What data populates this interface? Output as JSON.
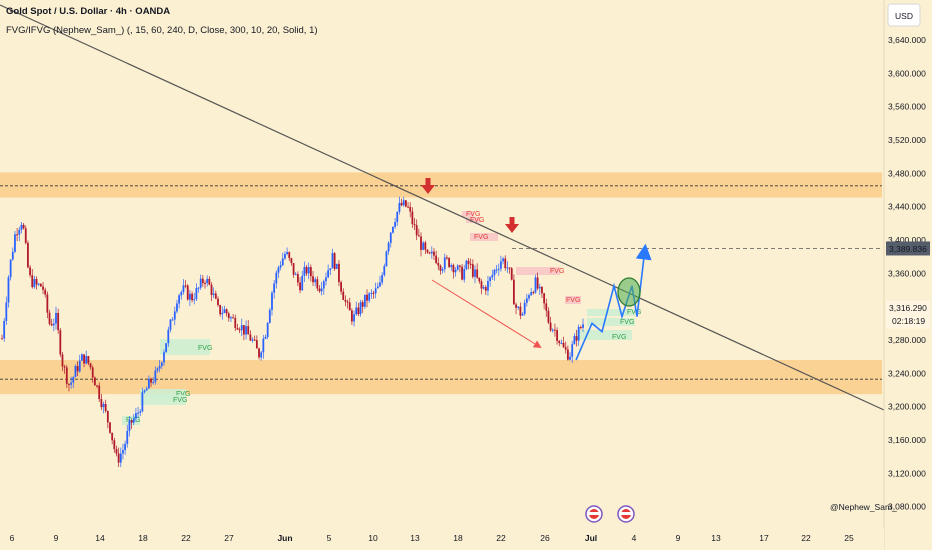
{
  "header": {
    "title": "Gold Spot / U.S. Dollar · 4h · OANDA",
    "indicator": "FVG/IFVG (Nephew_Sam_) (, 15, 60, 240, D, Close, 300, 10, 20, Solid, 1)"
  },
  "currency": "USD",
  "watermark": "@Nephew_Sam_",
  "colors": {
    "background": "#fcf0d2",
    "zone": "#f9cc8a",
    "bull": "#2962ff",
    "bear": "#b2182b",
    "fvg_red": "#f7c6c6",
    "fvg_green": "#cdeed0",
    "projection": "#2979ff",
    "trendline": "#555555",
    "arrow": "#d32f2f"
  },
  "chart_data": {
    "type": "candlestick",
    "y_axis_ticks": [
      "3,640.000",
      "3,600.000",
      "3,560.000",
      "3,520.000",
      "3,480.000",
      "3,440.000",
      "3,400.000",
      "3,360.000",
      "3,320.000",
      "3,280.000",
      "3,240.000",
      "3,200.000",
      "3,160.000",
      "3,120.000",
      "3,080.000"
    ],
    "ylim": [
      3052,
      3676
    ],
    "x_axis_labels": [
      "6",
      "9",
      "14",
      "18",
      "22",
      "27",
      "Jun",
      "5",
      "10",
      "13",
      "18",
      "22",
      "26",
      "Jul",
      "4",
      "9",
      "13",
      "17",
      "22",
      "25"
    ],
    "price_labels": {
      "level_label": "3,389.836",
      "current_price": "3,316.290",
      "countdown": "02:18:19"
    },
    "price_levels": {
      "level_line": 3389.836,
      "current_price": 3316.29
    },
    "zones": [
      {
        "name": "resistance",
        "from": 3451,
        "to": 3481,
        "midline": 3465
      },
      {
        "name": "support",
        "from": 3215,
        "to": 3256,
        "midline": 3233
      }
    ],
    "trendline": {
      "from": 3682,
      "to": 3196
    },
    "close_path": [
      3282,
      3360,
      3410,
      3425,
      3355,
      3345,
      3345,
      3300,
      3305,
      3250,
      3225,
      3245,
      3260,
      3250,
      3225,
      3200,
      3175,
      3135,
      3150,
      3180,
      3190,
      3215,
      3230,
      3240,
      3270,
      3300,
      3335,
      3340,
      3330,
      3340,
      3355,
      3340,
      3315,
      3315,
      3305,
      3300,
      3290,
      3280,
      3262,
      3290,
      3340,
      3370,
      3385,
      3365,
      3345,
      3365,
      3355,
      3345,
      3360,
      3380,
      3350,
      3320,
      3305,
      3320,
      3330,
      3335,
      3345,
      3395,
      3425,
      3442,
      3440,
      3415,
      3395,
      3378,
      3382,
      3370,
      3375,
      3368,
      3358,
      3372,
      3358,
      3340,
      3348,
      3365,
      3378,
      3365,
      3320,
      3310,
      3338,
      3348,
      3328,
      3300,
      3290,
      3270,
      3262,
      3285,
      3300
    ],
    "fvg_labels": [
      {
        "label": "FVG",
        "color": "red"
      },
      {
        "label": "FVG",
        "color": "red"
      },
      {
        "label": "FVG",
        "color": "red"
      },
      {
        "label": "FVG",
        "color": "red"
      },
      {
        "label": "FVG",
        "color": "red"
      },
      {
        "label": "FVG",
        "color": "green"
      },
      {
        "label": "FVG",
        "color": "green"
      },
      {
        "label": "FVG",
        "color": "green"
      },
      {
        "label": "FVG",
        "color": "green"
      },
      {
        "label": "FVG",
        "color": "green"
      },
      {
        "label": "FVG",
        "color": "green"
      },
      {
        "label": "FVG",
        "color": "green"
      }
    ],
    "projection_path": [
      3256,
      3300,
      3290,
      3345,
      3308,
      3345,
      3308,
      3390
    ]
  }
}
